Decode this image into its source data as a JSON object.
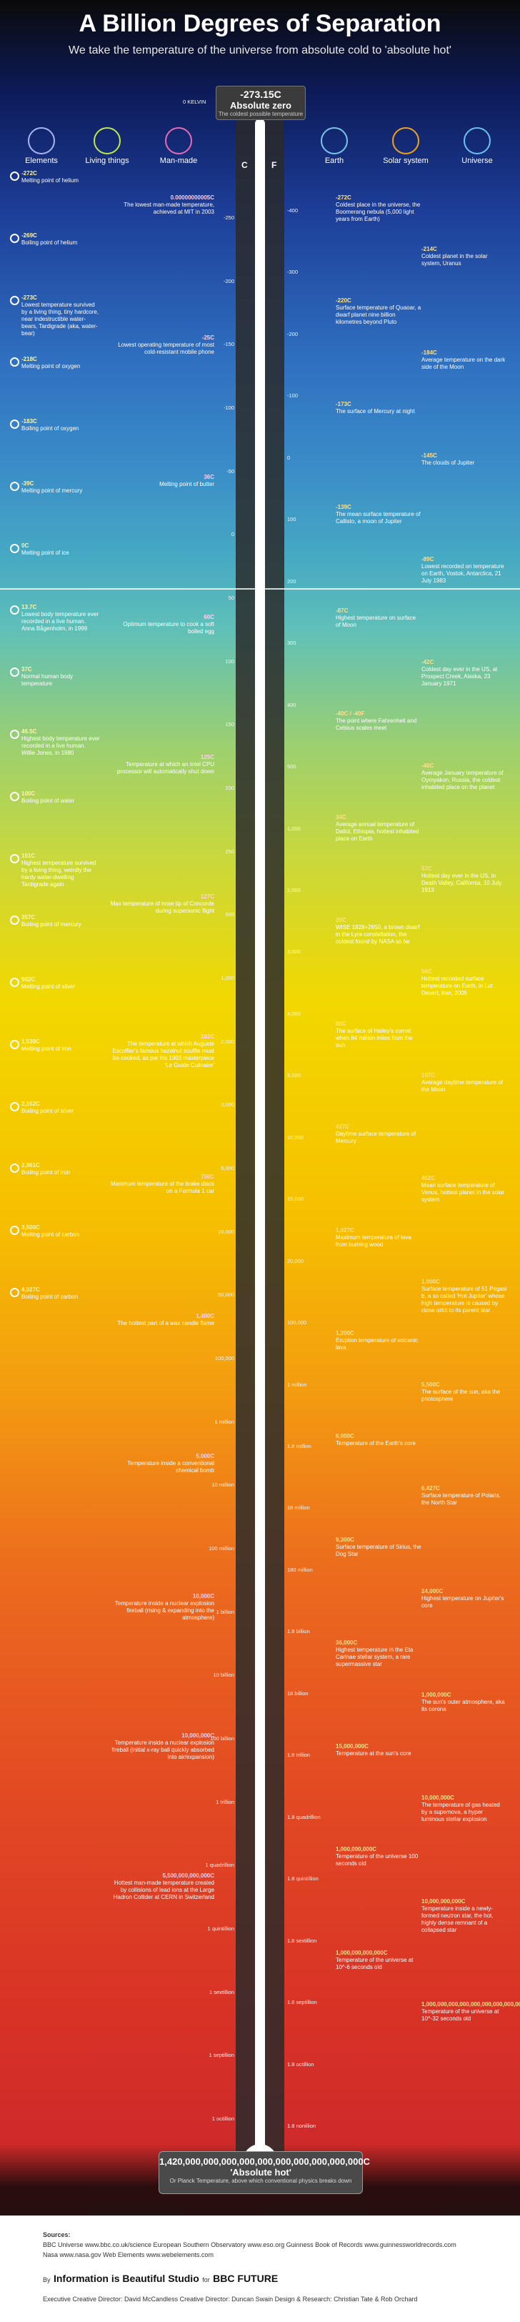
{
  "header": {
    "title": "A Billion Degrees of Separation",
    "subtitle": "We take the temperature of the universe from absolute cold to 'absolute hot'"
  },
  "categories": [
    {
      "label": "Elements",
      "color": "#a7b6f0"
    },
    {
      "label": "Living things",
      "color": "#c0e84a"
    },
    {
      "label": "Man-made",
      "color": "#e86ab6"
    },
    {
      "label": "Earth",
      "color": "#7bc6e6"
    },
    {
      "label": "Solar system",
      "color": "#f3a11b"
    },
    {
      "label": "Universe",
      "color": "#6bc1f0"
    }
  ],
  "absolute_zero": {
    "temp": "-273.15C",
    "name": "Absolute zero",
    "desc": "The coldest possible temperature",
    "kelvin_tag": "0 KELVIN",
    "scale_c": "C",
    "scale_f": "F"
  },
  "fahrenheit_ticks": [
    "-400",
    "-300",
    "-200",
    "-100",
    "0",
    "100",
    "200",
    "300",
    "400",
    "500",
    "1,000",
    "2,000",
    "3,000",
    "4,000",
    "5,000",
    "10,000",
    "15,000",
    "20,000",
    "100,000",
    "1 million",
    "1.8 million",
    "18 million",
    "180 million",
    "1.8 billion",
    "18 billion",
    "1.8 trillion",
    "1.8 quadrillion",
    "1.8 quintillion",
    "1.8 sextillion",
    "1.8 septillion",
    "1.8 octillion",
    "1.8 nonillion"
  ],
  "celsius_ticks": [
    "-250",
    "-200",
    "-150",
    "-100",
    "-50",
    "0",
    "50",
    "100",
    "150",
    "200",
    "250",
    "500",
    "1,000",
    "2,000",
    "3,000",
    "5,000",
    "10,000",
    "50,000",
    "100,000",
    "1 million",
    "10 million",
    "100 million",
    "1 billion",
    "10 billion",
    "100 billion",
    "1 trillion",
    "1 quadrillion",
    "1 quintillion",
    "1 sextillion",
    "1 septillion",
    "1 octillion"
  ],
  "left_annotations": [
    {
      "temp": "-272C",
      "text": "Melting point of helium"
    },
    {
      "temp": "-269C",
      "text": "Boiling point of helium"
    },
    {
      "temp": "-273C",
      "text": "Lowest temperature survived by a living thing, tiny hardcore, near indestructible water-bears, Tardigrade (aka, water-bear)"
    },
    {
      "temp": "-218C",
      "text": "Melting point of oxygen"
    },
    {
      "temp": "-183C",
      "text": "Boiling point of oxygen"
    },
    {
      "temp": "-39C",
      "text": "Melting point of mercury"
    },
    {
      "temp": "0C",
      "text": "Melting point of ice"
    },
    {
      "temp": "13.7C",
      "text": "Lowest body temperature ever recorded in a live human. Anna Bågenholm, in 1999"
    },
    {
      "temp": "37C",
      "text": "Normal human body temperature"
    },
    {
      "temp": "46.5C",
      "text": "Highest body temperature ever recorded in a live human. Willie Jones, in 1980"
    },
    {
      "temp": "100C",
      "text": "Boiling point of water"
    },
    {
      "temp": "151C",
      "text": "Highest temperature survived by a living thing, weirdly the hardy water-dwelling Tardigrade again"
    },
    {
      "temp": "357C",
      "text": "Boiling point of mercury"
    },
    {
      "temp": "962C",
      "text": "Melting point of silver"
    },
    {
      "temp": "1,538C",
      "text": "Melting point of iron"
    },
    {
      "temp": "2,162C",
      "text": "Boiling point of silver"
    },
    {
      "temp": "2,861C",
      "text": "Boiling point of iron"
    },
    {
      "temp": "3,500C",
      "text": "Melting point of carbon"
    },
    {
      "temp": "4,027C",
      "text": "Boiling point of carbon"
    }
  ],
  "center_left_annotations": [
    {
      "temp": "0.00000000005C",
      "text": "The lowest man-made temperature, achieved at MIT in 2003"
    },
    {
      "temp": "-25C",
      "text": "Lowest operating temperature of most cold-resistant mobile phone"
    },
    {
      "temp": "36C",
      "text": "Melting point of butter"
    },
    {
      "temp": "60C",
      "text": "Optimum temperature to cook a soft boiled egg"
    },
    {
      "temp": "125C",
      "text": "Temperature at which an Intel CPU processor will automatically shut down"
    },
    {
      "temp": "127C",
      "text": "Max temperature of nose tip of Concorde during supersonic flight"
    },
    {
      "temp": "162C",
      "text": "The temperature at which Auguste Escoffier's famous hazelnut souffle must be cooked, as per his 1903 masterpiece 'Le Guide Culinaire'"
    },
    {
      "temp": "750C",
      "text": "Maximum temperature of the brake discs on a Formula 1 car"
    },
    {
      "temp": "1,400C",
      "text": "The hottest part of a wax candle flame"
    },
    {
      "temp": "5,000C",
      "text": "Temperature inside a conventional chemical bomb"
    },
    {
      "temp": "10,000C",
      "text": "Temperature inside a nuclear explosion fireball (rising & expanding into the atmosphere)"
    },
    {
      "temp": "10,000,000C",
      "text": "Temperature inside a nuclear explosion fireball (initial x-ray ball quickly absorbed into air/expansion)"
    },
    {
      "temp": "5,500,000,000,000C",
      "text": "Hottest man-made temperature created by collisions of lead ions at the Large Hadron Collider at CERN in Switzerland"
    }
  ],
  "right_annotations": [
    {
      "temp": "-272C",
      "text": "Coldest place in the universe, the Boomerang nebula (5,000 light years from Earth)"
    },
    {
      "temp": "-214C",
      "text": "Coldest planet in the solar system, Uranus"
    },
    {
      "temp": "-220C",
      "text": "Surface temperature of Quaoar, a dwarf planet nine billion kilometres beyond Pluto"
    },
    {
      "temp": "-184C",
      "text": "Average temperature on the dark side of the Moon"
    },
    {
      "temp": "-173C",
      "text": "The surface of Mercury at night"
    },
    {
      "temp": "-145C",
      "text": "The clouds of Jupiter"
    },
    {
      "temp": "-139C",
      "text": "The mean surface temperature of Callisto, a moon of Jupiter"
    },
    {
      "temp": "-89C",
      "text": "Lowest recorded on temperature on Earth, Vostok, Antarctica, 21 July 1983"
    },
    {
      "temp": "-87C",
      "text": "Highest temperature on surface of Moon"
    },
    {
      "temp": "-42C",
      "text": "Coldest day ever in the US, at Prospect Creek, Alaska, 23 January 1971"
    },
    {
      "temp": "-40C / -40F",
      "text": "The point where Fahrenheit and Celsius scales meet"
    },
    {
      "temp": "-46C",
      "text": "Average January temperature of Oymyakon, Russia, the coldest inhabited place on the planet"
    },
    {
      "temp": "34C",
      "text": "Average annual temperature of Dallol, Ethiopia, hottest inhabited place on Earth"
    },
    {
      "temp": "57C",
      "text": "Hottest day ever in the US, in Death Valley, California, 10 July 1913"
    },
    {
      "temp": "20C",
      "text": "WISE 1828+2650, a brown dwarf in the Lyra constellation, the coldest found by NASA so far"
    },
    {
      "temp": "58C",
      "text": "Hottest recorded surface temperature on Earth, in Lut Desert, Iran, 2005"
    },
    {
      "temp": "80C",
      "text": "The surface of Halley's comet when 84 million miles from the sun"
    },
    {
      "temp": "107C",
      "text": "Average daytime temperature of the Moon"
    },
    {
      "temp": "427C",
      "text": "Daytime surface temperature of Mercury"
    },
    {
      "temp": "462C",
      "text": "Mean surface temperature of Venus, hottest planet in the solar system"
    },
    {
      "temp": "1,027C",
      "text": "Maximum temperature of lava from burning wood"
    },
    {
      "temp": "1,000C",
      "text": "Surface temperature of 51 Pegasi b, a so called 'Hot Jupiter' whose high temperature is caused by close orbit to its parent star"
    },
    {
      "temp": "1,200C",
      "text": "Eruption temperature of volcanic lava"
    },
    {
      "temp": "5,500C",
      "text": "The surface of the sun, aka the photosphere"
    },
    {
      "temp": "6,000C",
      "text": "Temperature of the Earth's core"
    },
    {
      "temp": "6,427C",
      "text": "Surface temperature of Polaris, the North Star"
    },
    {
      "temp": "9,300C",
      "text": "Surface temperature of Sirius, the Dog Star"
    },
    {
      "temp": "24,000C",
      "text": "Highest temperature on Jupiter's core"
    },
    {
      "temp": "36,000C",
      "text": "Highest temperature in the Eta Carinae stellar system, a rare supermassive star"
    },
    {
      "temp": "1,000,000C",
      "text": "The sun's outer atmosphere, aka its corona"
    },
    {
      "temp": "15,000,000C",
      "text": "Temperature at the sun's core"
    },
    {
      "temp": "10,000,000C",
      "text": "The temperature of gas heated by a supernova, a hyper luminous stellar explosion"
    },
    {
      "temp": "1,000,000,000C",
      "text": "Temperature of the universe 100 seconds old"
    },
    {
      "temp": "10,000,000,000C",
      "text": "Temperature inside a newly-formed neutron star, the hot, highly dense remnant of a collapsed star"
    },
    {
      "temp": "1,000,000,000,000C",
      "text": "Temperature of the universe at 10^-6 seconds old"
    },
    {
      "temp": "1,000,000,000,000,000,000,000,000,000C",
      "text": "Temperature of the universe at 10^-32 seconds old"
    }
  ],
  "absolute_hot": {
    "temp": "1,420,000,000,000,000,000,000,000,000,000,000C",
    "name": "'Absolute hot'",
    "desc": "Or Planck Temperature, above which conventional physics breaks down"
  },
  "footer": {
    "sources_label": "Sources:",
    "sources_line1": "BBC Universe www.bbc.co.uk/science  European Southern Observatory www.eso.org  Guinness Book of Records www.guinnessworldrecords.com",
    "sources_line2": "Nasa www.nasa.gov  Web Elements www.webelements.com",
    "credit_by": "By",
    "credit_studio": "Information is Beautiful Studio",
    "credit_for": "for",
    "credit_brand": "BBC FUTURE",
    "staff": "Executive Creative Director: David McCandless  Creative Director: Duncan Swain  Design & Research: Christian Tate & Rob Orchard"
  }
}
